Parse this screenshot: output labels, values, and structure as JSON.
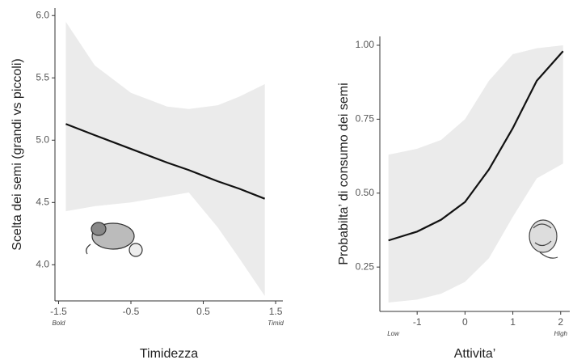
{
  "chart_data": [
    {
      "type": "line",
      "y_label": "Scelta dei semi (grandi vs piccoli)",
      "x_label": "Timidezza",
      "x": [
        -1.4,
        -1.0,
        -0.5,
        0.0,
        0.3,
        0.7,
        1.0,
        1.35
      ],
      "values": [
        5.13,
        5.04,
        4.93,
        4.82,
        4.76,
        4.67,
        4.61,
        4.53
      ],
      "upper": [
        5.95,
        5.6,
        5.38,
        5.27,
        5.25,
        5.28,
        5.35,
        5.45
      ],
      "lower": [
        4.43,
        4.47,
        4.5,
        4.55,
        4.58,
        4.3,
        4.05,
        3.75
      ],
      "color": "#111111",
      "band_color": "#ebebeb",
      "xlim": [
        -1.55,
        1.6
      ],
      "ylim": [
        3.71,
        6.06
      ],
      "xticks": [
        -1.5,
        -0.5,
        0.5,
        1.5
      ],
      "yticks": [
        {
          "value": 4,
          "label": "4.0"
        },
        4.5,
        {
          "value": 5,
          "label": "5.0"
        },
        5.5,
        {
          "value": 6,
          "label": "6.0"
        }
      ],
      "annotations": [
        {
          "text": "Bold",
          "x": -1.5
        },
        {
          "text": "Timid",
          "x": 1.5
        }
      ]
    },
    {
      "type": "line",
      "y_label": "Probabilta’ di consumo dei semi",
      "x_label": "Attivita’",
      "x": [
        -1.6,
        -1.0,
        -0.5,
        0.0,
        0.5,
        1.0,
        1.5,
        2.05
      ],
      "values": [
        0.34,
        0.37,
        0.41,
        0.47,
        0.58,
        0.72,
        0.88,
        0.98
      ],
      "upper": [
        0.63,
        0.65,
        0.68,
        0.75,
        0.88,
        0.97,
        0.99,
        1.0
      ],
      "lower": [
        0.13,
        0.14,
        0.16,
        0.2,
        0.28,
        0.42,
        0.55,
        0.6
      ],
      "color": "#111111",
      "band_color": "#ebebeb",
      "xlim": [
        -1.78,
        2.19
      ],
      "ylim": [
        0.1,
        1.03
      ],
      "xticks": [
        -1,
        0,
        1,
        2
      ],
      "yticks": [
        0.25,
        {
          "value": 0.5,
          "label": "0.50"
        },
        0.75,
        {
          "value": 1,
          "label": "1.00"
        }
      ],
      "annotations": [
        {
          "text": "Low",
          "x": -1.5
        },
        {
          "text": "High",
          "x": 2.0
        }
      ]
    }
  ]
}
